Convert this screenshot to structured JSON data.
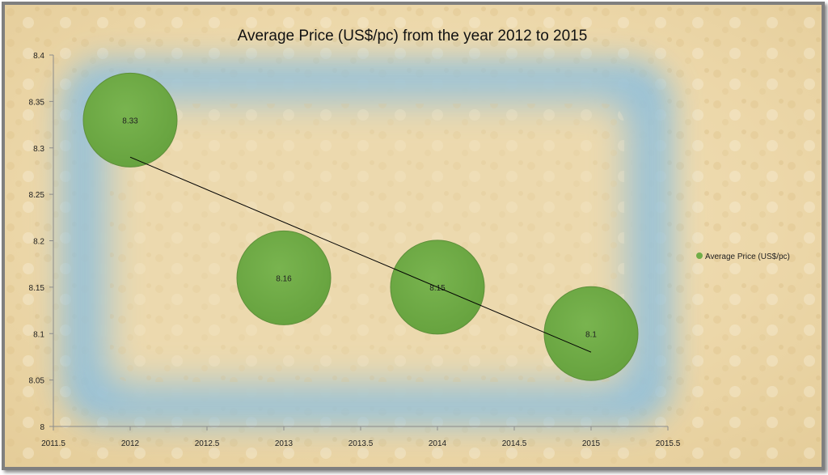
{
  "chart_data": {
    "type": "scatter",
    "subtype": "bubble",
    "title": "Average Price (US$/pc) from the year 2012 to 2015",
    "xlabel": "",
    "ylabel": "",
    "xlim": [
      2011.5,
      2015.5
    ],
    "ylim": [
      8,
      8.4
    ],
    "x_ticks": [
      "2011.5",
      "2012",
      "2012.5",
      "2013",
      "2013.5",
      "2014",
      "2014.5",
      "2015",
      "2015.5"
    ],
    "y_ticks": [
      "8",
      "8.05",
      "8.1",
      "8.15",
      "8.2",
      "8.25",
      "8.3",
      "8.35",
      "8.4"
    ],
    "grid": false,
    "legend_position": "right",
    "series": [
      {
        "name": "Average Price (US$/pc)",
        "color": "#70ad47",
        "points": [
          {
            "x": 2012,
            "y": 8.33,
            "label": "8.33"
          },
          {
            "x": 2013,
            "y": 8.16,
            "label": "8.16"
          },
          {
            "x": 2014,
            "y": 8.15,
            "label": "8.15"
          },
          {
            "x": 2015,
            "y": 8.1,
            "label": "8.1"
          }
        ]
      }
    ],
    "trendline": {
      "type": "linear",
      "color": "#000000",
      "from": {
        "x": 2012,
        "y": 8.29
      },
      "to": {
        "x": 2015,
        "y": 8.08
      }
    }
  }
}
